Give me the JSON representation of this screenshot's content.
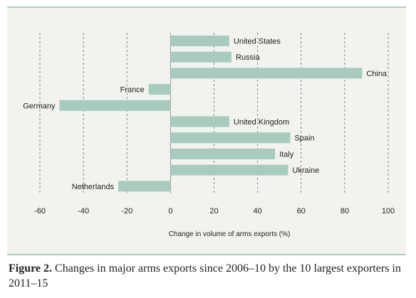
{
  "chart_data": {
    "type": "bar",
    "orientation": "horizontal",
    "categories": [
      "United States",
      "Russia",
      "China",
      "France",
      "Germany",
      "United Kingdom",
      "Spain",
      "Italy",
      "Ukraine",
      "Netherlands"
    ],
    "values": [
      27,
      28,
      88,
      -10,
      -51,
      27,
      55,
      48,
      54,
      -24
    ],
    "xlabel": "Change in volume of arms exports (%)",
    "ylabel": "",
    "xlim": [
      -60,
      100
    ],
    "xticks": [
      -60,
      -40,
      -20,
      0,
      20,
      40,
      60,
      80,
      100
    ],
    "grid": "vertical dashed",
    "colors": {
      "bar": "#a8cbbf",
      "grid": "#7a7a7a",
      "zero_line": "#999999",
      "panel": "#f2f2ee"
    }
  },
  "caption": {
    "label": "Figure 2.",
    "text": "Changes in major arms exports since 2006–10 by the 10 largest exporters in 2011–15"
  }
}
